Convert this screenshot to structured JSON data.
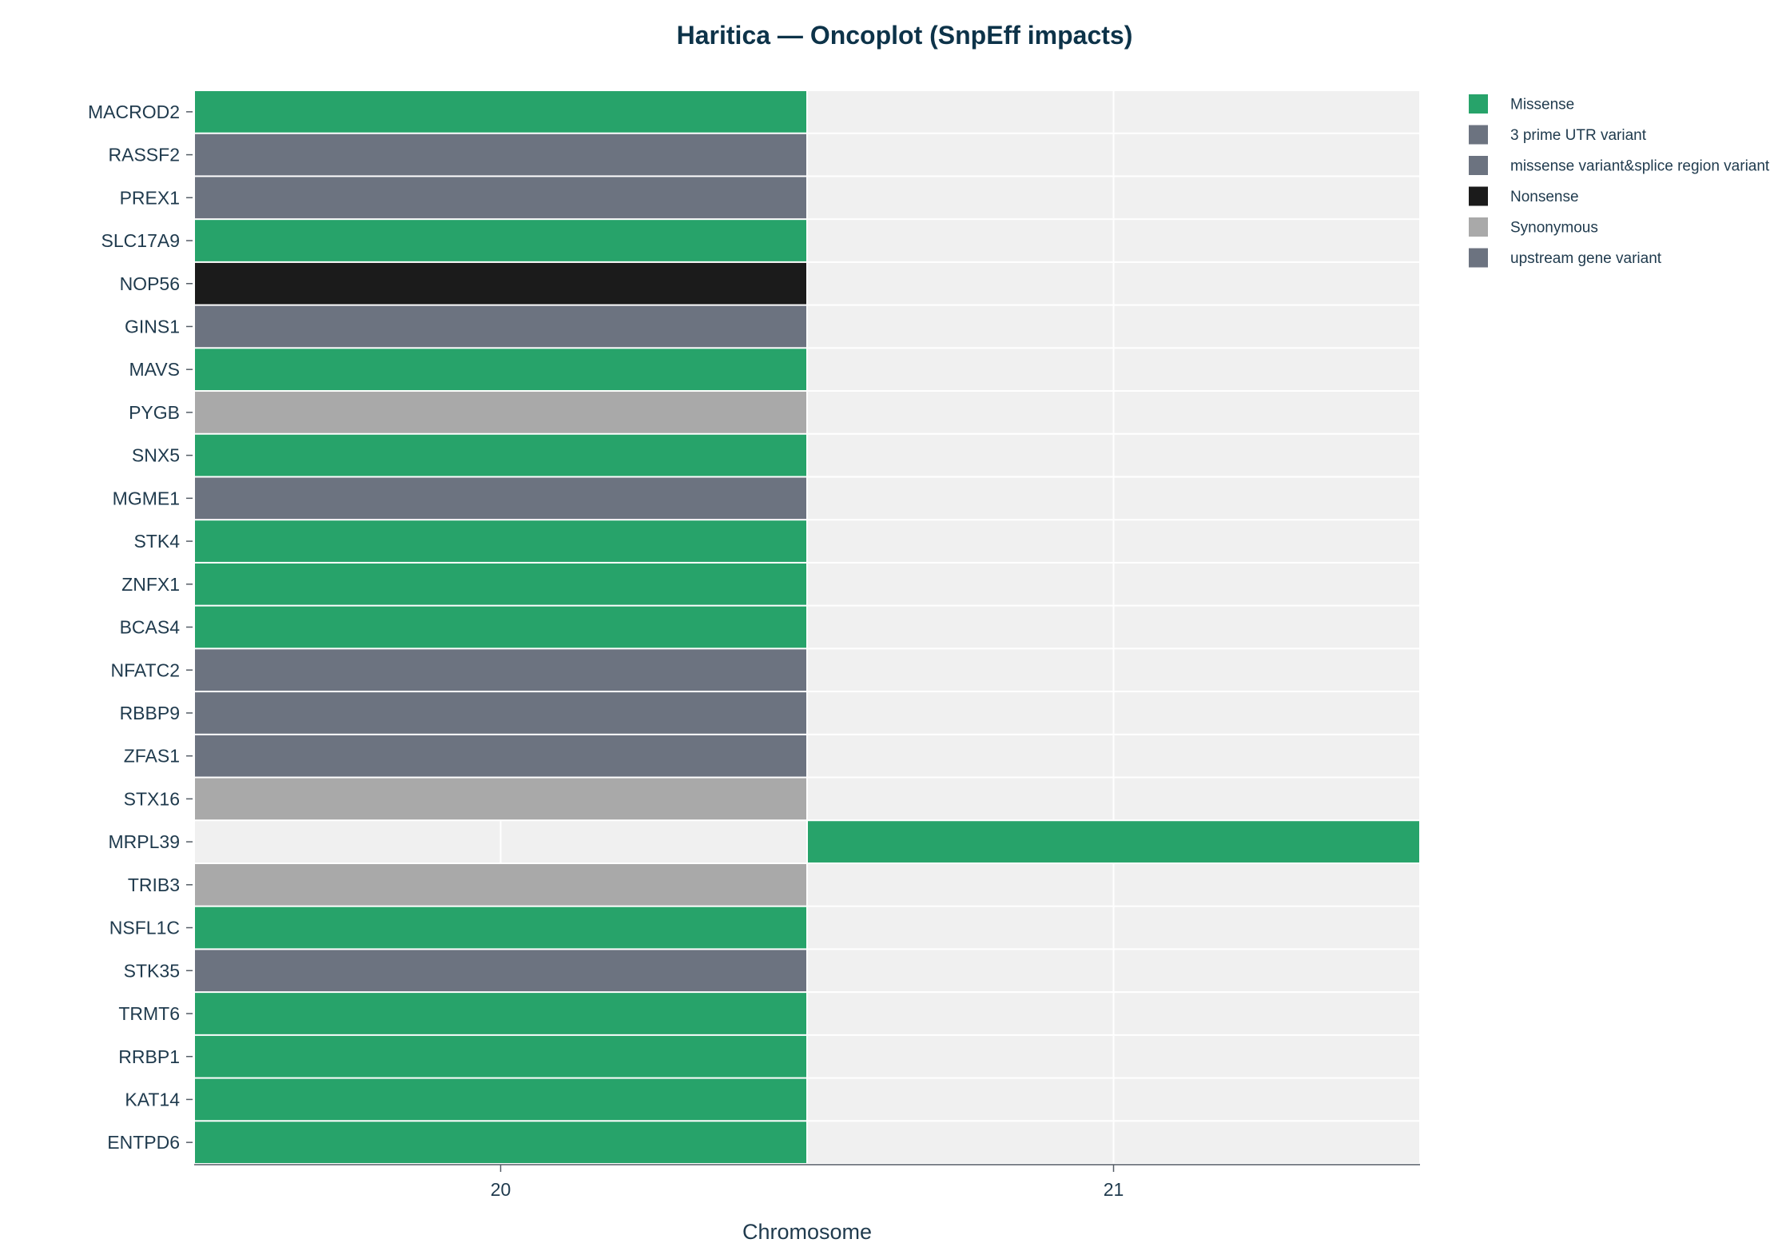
{
  "colors": {
    "missense": "#27a36a",
    "utr3": "#6c7380",
    "missense_splice": "#6c7380",
    "nonsense": "#1b1b1b",
    "synonymous": "#a9a9a9",
    "upstream": "#6c7380",
    "empty": "#f0f0f0",
    "text": "#1f3a4d",
    "title": "#0d3349"
  },
  "chart_data": {
    "type": "heatmap",
    "title": "Haritica — Oncoplot (SnpEff impacts)",
    "xlabel": "Chromosome",
    "ylabel": "",
    "x_categories": [
      "20",
      "21"
    ],
    "legend": {
      "position": "top-right",
      "entries": [
        {
          "key": "missense",
          "label": "Missense"
        },
        {
          "key": "utr3",
          "label": "3 prime UTR variant"
        },
        {
          "key": "missense_splice",
          "label": "missense variant&splice region variant"
        },
        {
          "key": "nonsense",
          "label": "Nonsense"
        },
        {
          "key": "synonymous",
          "label": "Synonymous"
        },
        {
          "key": "upstream",
          "label": "upstream gene variant"
        }
      ]
    },
    "genes": [
      {
        "gene": "MACROD2",
        "cells": [
          "missense",
          null
        ]
      },
      {
        "gene": "RASSF2",
        "cells": [
          "utr3",
          null
        ]
      },
      {
        "gene": "PREX1",
        "cells": [
          "utr3",
          null
        ]
      },
      {
        "gene": "SLC17A9",
        "cells": [
          "missense",
          null
        ]
      },
      {
        "gene": "NOP56",
        "cells": [
          "nonsense",
          null
        ]
      },
      {
        "gene": "GINS1",
        "cells": [
          "utr3",
          null
        ]
      },
      {
        "gene": "MAVS",
        "cells": [
          "missense",
          null
        ]
      },
      {
        "gene": "PYGB",
        "cells": [
          "synonymous",
          null
        ]
      },
      {
        "gene": "SNX5",
        "cells": [
          "missense",
          null
        ]
      },
      {
        "gene": "MGME1",
        "cells": [
          "utr3",
          null
        ]
      },
      {
        "gene": "STK4",
        "cells": [
          "missense",
          null
        ]
      },
      {
        "gene": "ZNFX1",
        "cells": [
          "missense",
          null
        ]
      },
      {
        "gene": "BCAS4",
        "cells": [
          "missense",
          null
        ]
      },
      {
        "gene": "NFATC2",
        "cells": [
          "utr3",
          null
        ]
      },
      {
        "gene": "RBBP9",
        "cells": [
          "utr3",
          null
        ]
      },
      {
        "gene": "ZFAS1",
        "cells": [
          "utr3",
          null
        ]
      },
      {
        "gene": "STX16",
        "cells": [
          "synonymous",
          null
        ]
      },
      {
        "gene": "MRPL39",
        "cells": [
          null,
          "missense"
        ]
      },
      {
        "gene": "TRIB3",
        "cells": [
          "synonymous",
          null
        ]
      },
      {
        "gene": "NSFL1C",
        "cells": [
          "missense",
          null
        ]
      },
      {
        "gene": "STK35",
        "cells": [
          "utr3",
          null
        ]
      },
      {
        "gene": "TRMT6",
        "cells": [
          "missense",
          null
        ]
      },
      {
        "gene": "RRBP1",
        "cells": [
          "missense",
          null
        ]
      },
      {
        "gene": "KAT14",
        "cells": [
          "missense",
          null
        ]
      },
      {
        "gene": "ENTPD6",
        "cells": [
          "missense",
          null
        ]
      }
    ]
  }
}
